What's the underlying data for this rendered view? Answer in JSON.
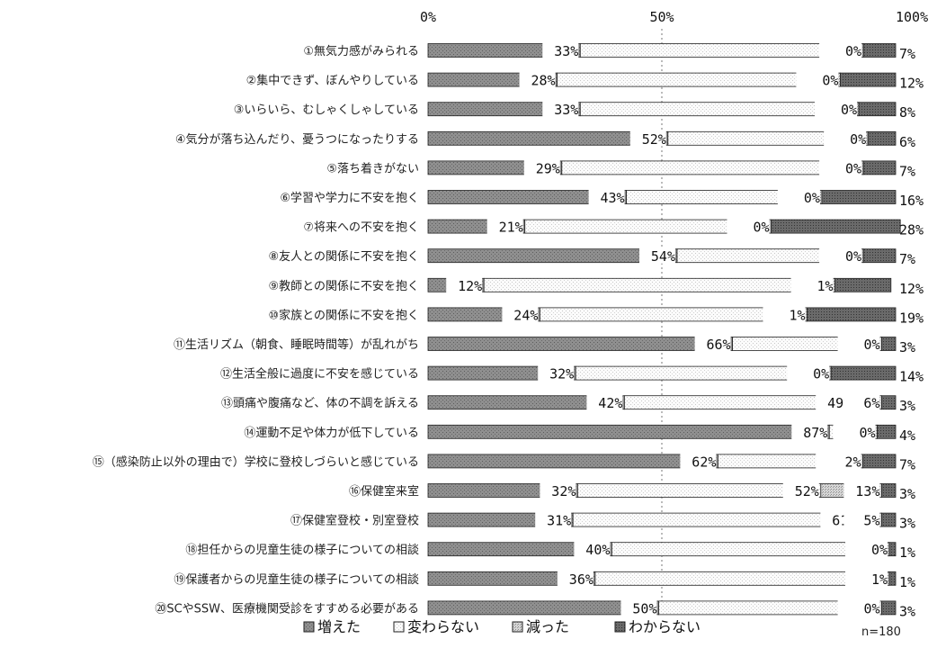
{
  "chart_data": {
    "type": "bar",
    "stacked": true,
    "orientation": "horizontal",
    "percent_scale": true,
    "xlim": [
      0,
      100
    ],
    "axis_ticks": [
      "0%",
      "50%",
      "100%"
    ],
    "categories": [
      "①無気力感がみられる",
      "②集中できず、ぼんやりしている",
      "③いらいら、むしゃくしゃしている",
      "④気分が落ち込んだり、憂うつになったりする",
      "⑤落ち着きがない",
      "⑥学習や学力に不安を抱く",
      "⑦将来への不安を抱く",
      "⑧友人との関係に不安を抱く",
      "⑨教師との関係に不安を抱く",
      "⑩家族との関係に不安を抱く",
      "⑪生活リズム（朝食、睡眠時間等）が乱れがち",
      "⑫生活全般に過度に不安を感じている",
      "⑬頭痛や腹痛など、体の不調を訴える",
      "⑭運動不足や体力が低下している",
      "⑮（感染防止以外の理由で）学校に登校しづらいと感じている",
      "⑯保健室来室",
      "⑰保健室登校・別室登校",
      "⑱担任からの児童生徒の様子についての相談",
      "⑲保護者からの児童生徒の様子についての相談",
      "⑳SCやSSW、医療機関受診をすすめる必要がある"
    ],
    "series": [
      {
        "name": "増えた",
        "values": [
          33,
          28,
          33,
          52,
          29,
          43,
          21,
          54,
          12,
          24,
          66,
          32,
          42,
          87,
          62,
          32,
          31,
          40,
          36,
          50
        ]
      },
      {
        "name": "変わらない",
        "values": [
          60,
          60,
          59,
          42,
          64,
          41,
          52,
          39,
          74,
          56,
          31,
          54,
          49,
          9,
          29,
          52,
          61,
          59,
          62,
          47
        ]
      },
      {
        "name": "減った",
        "values": [
          0,
          0,
          0,
          0,
          0,
          0,
          0,
          0,
          1,
          1,
          0,
          0,
          6,
          0,
          2,
          13,
          5,
          0,
          1,
          0
        ]
      },
      {
        "name": "わからない",
        "values": [
          7,
          12,
          8,
          6,
          7,
          16,
          28,
          7,
          12,
          19,
          3,
          14,
          3,
          4,
          7,
          3,
          3,
          1,
          1,
          3
        ]
      }
    ],
    "legend": {
      "position": "bottom",
      "entries": [
        "増えた",
        "変わらない",
        "減った",
        "わからない"
      ]
    },
    "note": "n=180",
    "grid": false
  },
  "colors": {
    "increased": "#8a8a8a",
    "unchanged": "#f4f4f4",
    "decreased": "#c4c4c4",
    "unknown": "#5a5a5a",
    "stroke": "#222222",
    "divider": "#333333"
  }
}
